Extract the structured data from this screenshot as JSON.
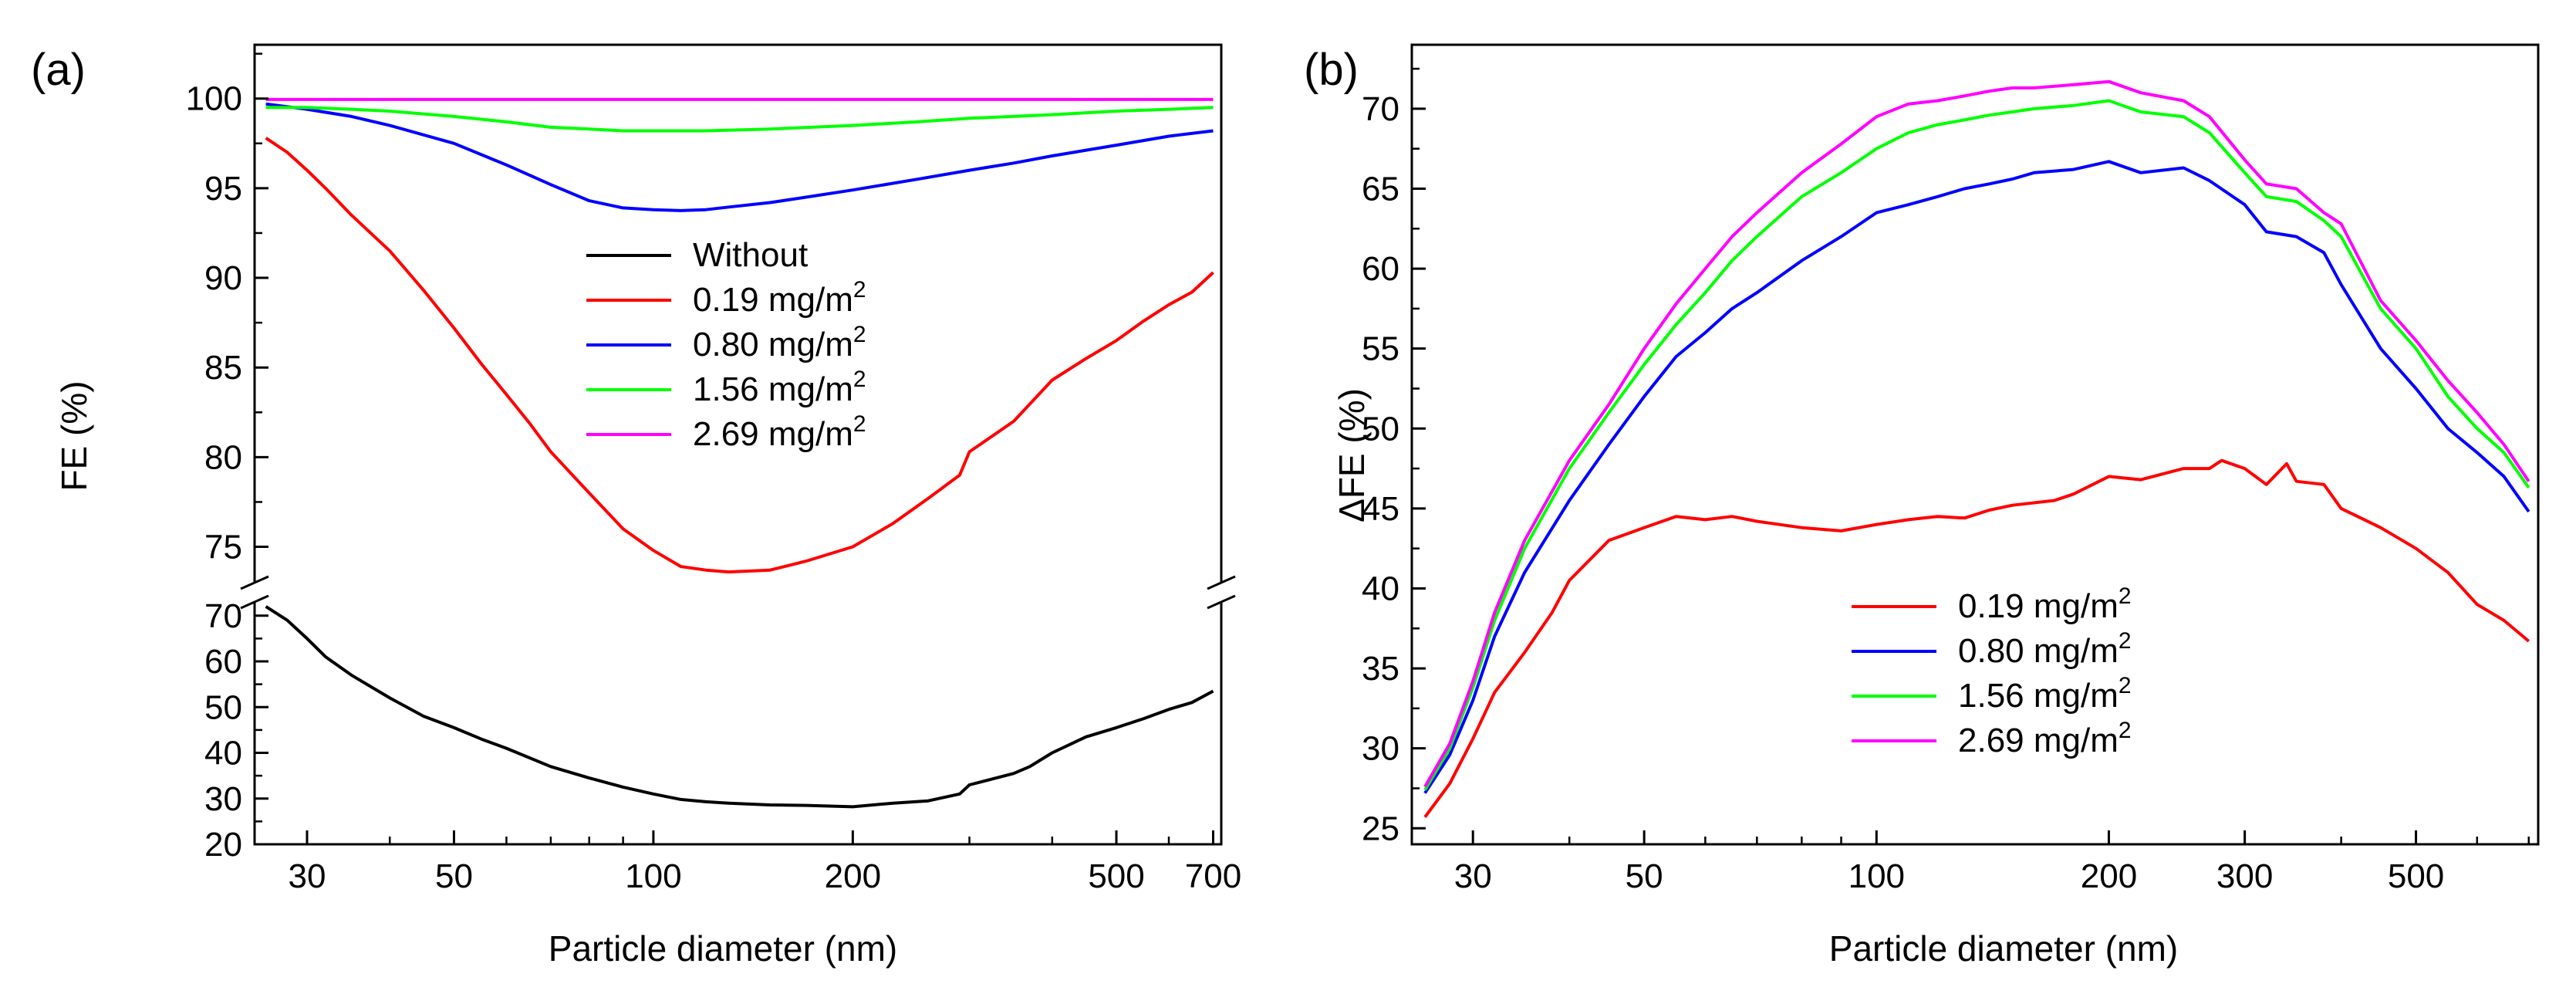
{
  "chart_data": [
    {
      "panel": "(a)",
      "type": "line",
      "xscale": "log",
      "xlabel": "Particle diameter (nm)",
      "ylabel": "FE (%)",
      "xlim": [
        25,
        720
      ],
      "xticks": [
        30,
        50,
        100,
        200,
        500,
        700
      ],
      "broken_y_axis": true,
      "upper_ylim": [
        73,
        103
      ],
      "upper_yticks": [
        75,
        80,
        85,
        90,
        95,
        100
      ],
      "lower_ylim": [
        20,
        73
      ],
      "lower_yticks": [
        20,
        30,
        40,
        50,
        60,
        70
      ],
      "legend_position": "center",
      "series": [
        {
          "name": "Without",
          "unit": "",
          "color": "#000000",
          "segment": "lower",
          "x": [
            26,
            28,
            30,
            32,
            35,
            40,
            45,
            50,
            55,
            60,
            70,
            80,
            90,
            100,
            110,
            120,
            130,
            150,
            170,
            200,
            230,
            260,
            290,
            300,
            350,
            370,
            400,
            450,
            500,
            550,
            600,
            650,
            700
          ],
          "y": [
            72,
            69,
            65,
            61,
            57,
            52,
            48,
            45.5,
            43,
            41,
            37,
            34.5,
            32.5,
            31,
            29.8,
            29.3,
            29,
            28.6,
            28.5,
            28.2,
            29,
            29.5,
            31,
            33,
            35.5,
            37,
            40,
            43.5,
            45.5,
            47.5,
            49.5,
            51,
            53.5
          ]
        },
        {
          "name": "0.19 mg/m",
          "unit": "2",
          "color": "#ff0000",
          "segment": "upper",
          "x": [
            26,
            28,
            30,
            32,
            35,
            40,
            45,
            50,
            55,
            60,
            65,
            70,
            80,
            90,
            100,
            110,
            120,
            130,
            150,
            170,
            200,
            230,
            260,
            290,
            300,
            350,
            400,
            450,
            500,
            550,
            600,
            650,
            700
          ],
          "y": [
            97.8,
            97,
            96,
            95,
            93.5,
            91.5,
            89.3,
            87.2,
            85.2,
            83.5,
            81.9,
            80.3,
            78,
            76,
            74.8,
            73.9,
            73.7,
            73.6,
            73.7,
            74.2,
            75,
            76.3,
            77.7,
            79,
            80.3,
            82,
            84.3,
            85.5,
            86.5,
            87.6,
            88.5,
            89.2,
            90.3
          ]
        },
        {
          "name": "0.80 mg/m",
          "unit": "2",
          "color": "#0000ff",
          "segment": "upper",
          "x": [
            26,
            30,
            35,
            40,
            50,
            60,
            70,
            80,
            90,
            100,
            110,
            120,
            130,
            150,
            170,
            200,
            250,
            300,
            350,
            400,
            500,
            600,
            700
          ],
          "y": [
            99.7,
            99.4,
            99,
            98.5,
            97.5,
            96.3,
            95.2,
            94.3,
            93.9,
            93.8,
            93.75,
            93.8,
            93.95,
            94.2,
            94.5,
            94.9,
            95.5,
            96,
            96.4,
            96.8,
            97.4,
            97.9,
            98.2
          ]
        },
        {
          "name": "1.56 mg/m",
          "unit": "2",
          "color": "#00ff00",
          "segment": "upper",
          "x": [
            26,
            30,
            35,
            40,
            50,
            60,
            70,
            80,
            90,
            100,
            120,
            150,
            200,
            250,
            300,
            400,
            500,
            600,
            700
          ],
          "y": [
            99.5,
            99.5,
            99.4,
            99.3,
            99,
            98.7,
            98.4,
            98.3,
            98.2,
            98.2,
            98.2,
            98.3,
            98.5,
            98.7,
            98.9,
            99.1,
            99.3,
            99.4,
            99.5
          ]
        },
        {
          "name": "2.69 mg/m",
          "unit": "2",
          "color": "#ff00ff",
          "segment": "upper",
          "x": [
            26,
            50,
            100,
            200,
            400,
            700
          ],
          "y": [
            99.95,
            99.95,
            99.95,
            99.95,
            99.95,
            99.95
          ]
        }
      ]
    },
    {
      "panel": "(b)",
      "type": "line",
      "xscale": "log",
      "xlabel": "Particle diameter (nm)",
      "ylabel": "ΔFE (%)",
      "xlim": [
        25,
        720
      ],
      "xticks": [
        30,
        50,
        100,
        200,
        300,
        500
      ],
      "ylim": [
        24,
        74
      ],
      "yticks": [
        25,
        30,
        35,
        40,
        45,
        50,
        55,
        60,
        65,
        70
      ],
      "legend_position": "lower-center",
      "series": [
        {
          "name": "0.19 mg/m",
          "unit": "2",
          "color": "#ff0000",
          "x": [
            26,
            28,
            30,
            32,
            35,
            38,
            40,
            45,
            50,
            55,
            60,
            65,
            70,
            80,
            90,
            100,
            110,
            120,
            130,
            140,
            150,
            170,
            180,
            200,
            220,
            250,
            270,
            280,
            300,
            320,
            340,
            350,
            380,
            400,
            450,
            500,
            550,
            600,
            650,
            700
          ],
          "y": [
            25.7,
            27.8,
            30.6,
            33.5,
            36,
            38.5,
            40.5,
            43,
            43.8,
            44.5,
            44.3,
            44.5,
            44.2,
            43.8,
            43.6,
            44,
            44.3,
            44.5,
            44.4,
            44.9,
            45.2,
            45.5,
            45.9,
            47,
            46.8,
            47.5,
            47.5,
            48,
            47.5,
            46.5,
            47.8,
            46.7,
            46.5,
            45,
            43.8,
            42.5,
            41,
            39,
            38,
            36.7
          ]
        },
        {
          "name": "0.80 mg/m",
          "unit": "2",
          "color": "#0000ff",
          "x": [
            26,
            28,
            30,
            32,
            35,
            40,
            45,
            50,
            55,
            60,
            65,
            70,
            80,
            90,
            100,
            110,
            120,
            130,
            140,
            150,
            160,
            180,
            200,
            220,
            250,
            270,
            300,
            320,
            350,
            380,
            400,
            450,
            500,
            550,
            600,
            650,
            700
          ],
          "y": [
            27.2,
            29.6,
            33,
            37,
            41,
            45.5,
            49,
            52,
            54.5,
            56,
            57.5,
            58.5,
            60.5,
            62,
            63.5,
            64,
            64.5,
            65,
            65.3,
            65.6,
            66,
            66.2,
            66.7,
            66,
            66.3,
            65.5,
            64,
            62.3,
            62,
            61,
            59,
            55,
            52.5,
            50,
            48.5,
            47,
            44.8
          ]
        },
        {
          "name": "1.56 mg/m",
          "unit": "2",
          "color": "#00ff00",
          "x": [
            26,
            28,
            30,
            32,
            35,
            40,
            45,
            50,
            55,
            60,
            65,
            70,
            80,
            90,
            100,
            110,
            120,
            130,
            140,
            150,
            160,
            180,
            200,
            220,
            250,
            270,
            300,
            320,
            350,
            380,
            400,
            450,
            500,
            550,
            600,
            650,
            700
          ],
          "y": [
            27.4,
            30,
            33.8,
            38,
            42.5,
            47.5,
            51,
            54,
            56.5,
            58.5,
            60.5,
            62,
            64.5,
            66,
            67.5,
            68.5,
            69,
            69.3,
            69.6,
            69.8,
            70,
            70.2,
            70.5,
            69.8,
            69.5,
            68.5,
            66,
            64.5,
            64.2,
            63,
            62,
            57.5,
            55,
            52,
            50,
            48.5,
            46.3
          ]
        },
        {
          "name": "2.69 mg/m",
          "unit": "2",
          "color": "#ff00ff",
          "x": [
            26,
            28,
            30,
            32,
            35,
            40,
            45,
            50,
            55,
            60,
            65,
            70,
            80,
            90,
            100,
            110,
            120,
            130,
            140,
            150,
            160,
            180,
            200,
            220,
            250,
            270,
            300,
            320,
            350,
            380,
            400,
            450,
            500,
            550,
            600,
            650,
            700
          ],
          "y": [
            27.6,
            30.3,
            34.2,
            38.5,
            43,
            48,
            51.5,
            55,
            57.8,
            60,
            62,
            63.5,
            66,
            67.8,
            69.5,
            70.3,
            70.5,
            70.8,
            71.1,
            71.3,
            71.3,
            71.5,
            71.7,
            71,
            70.5,
            69.5,
            66.8,
            65.3,
            65,
            63.5,
            62.8,
            58,
            55.5,
            53,
            51,
            49,
            46.7
          ]
        }
      ]
    }
  ]
}
